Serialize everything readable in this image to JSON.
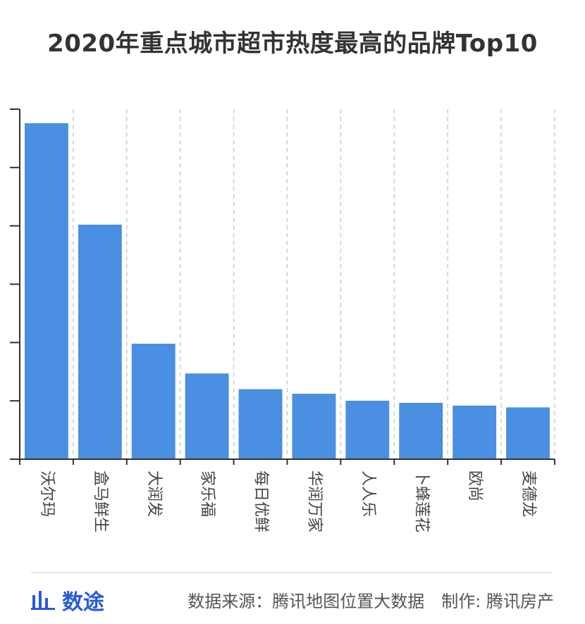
{
  "title": "2020年重点城市超市热度最高的品牌Top10",
  "chart_data": {
    "type": "bar",
    "title": "2020年重点城市超市热度最高的品牌Top10",
    "categories": [
      "沃尔玛",
      "盒马鲜生",
      "大润发",
      "家乐福",
      "每日优鲜",
      "华润万家",
      "人人乐",
      "卜蜂莲花",
      "欧尚",
      "麦德龙"
    ],
    "values": [
      96,
      67,
      33,
      24.5,
      20,
      18.7,
      16.7,
      16.1,
      15.3,
      14.8
    ],
    "ylim": [
      0,
      100
    ],
    "yticks": [
      0,
      16.67,
      33.33,
      50,
      66.67,
      83.33,
      100
    ],
    "grid": "vertical dashed",
    "bar_color": "#4a8fe2"
  },
  "footer": {
    "logo_text": "数途",
    "source_text": "数据来源：腾讯地图位置大数据　制作: 腾讯房产"
  },
  "colors": {
    "bar": "#4a8fe2",
    "axis": "#333333",
    "grid": "#cccccc",
    "logo": "#2a5bd7"
  }
}
